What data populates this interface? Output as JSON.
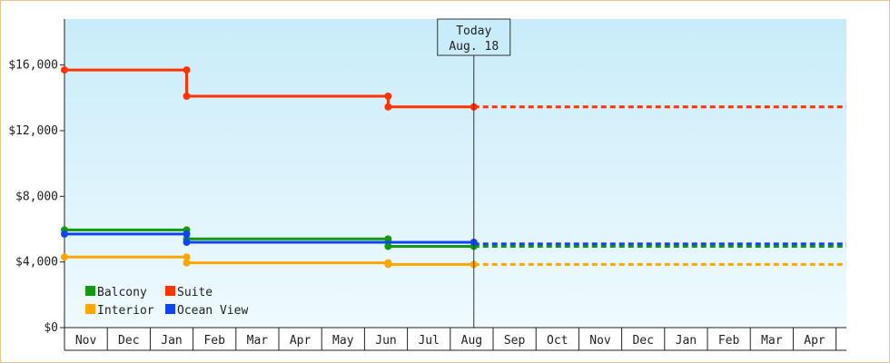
{
  "colors": {
    "background_top": "#c9ecfa",
    "background_bottom": "#effafe",
    "frame_border": "#e8c48e"
  },
  "chart_data": {
    "type": "line",
    "title": "",
    "xlabel": "",
    "ylabel": "",
    "ylim": [
      0,
      18800
    ],
    "x_tick_labels": [
      "Nov",
      "Dec",
      "Jan",
      "Feb",
      "Mar",
      "Apr",
      "May",
      "Jun",
      "Jul",
      "Aug",
      "Sep",
      "Oct",
      "Nov",
      "Dec",
      "Jan",
      "Feb",
      "Mar",
      "Apr"
    ],
    "y_ticks": [
      0,
      4000,
      8000,
      12000,
      16000
    ],
    "y_tick_labels": [
      "$0",
      "$4,000",
      "$8,000",
      "$12,000",
      "$16,000"
    ],
    "step": true,
    "today": {
      "line1": "Today",
      "line2": "Aug. 18",
      "x": 9.55
    },
    "legend": {
      "placement": "bottom-left",
      "columns": 2
    },
    "series": [
      {
        "name": "Balcony",
        "color": "#119911",
        "points": [
          [
            0,
            5950
          ],
          [
            2.85,
            5950
          ],
          [
            2.85,
            5400
          ],
          [
            7.55,
            5400
          ],
          [
            7.55,
            4950
          ],
          [
            9.55,
            4950
          ]
        ],
        "projection": 4950
      },
      {
        "name": "Suite",
        "color": "#ff3300",
        "points": [
          [
            0,
            15700
          ],
          [
            2.85,
            15700
          ],
          [
            2.85,
            14100
          ],
          [
            7.55,
            14100
          ],
          [
            7.55,
            13450
          ],
          [
            9.55,
            13450
          ]
        ],
        "projection": 13450
      },
      {
        "name": "Interior",
        "color": "#ffa500",
        "points": [
          [
            0,
            4300
          ],
          [
            2.85,
            4300
          ],
          [
            2.85,
            3950
          ],
          [
            7.55,
            3950
          ],
          [
            7.55,
            3850
          ],
          [
            9.55,
            3850
          ]
        ],
        "projection": 3850
      },
      {
        "name": "Ocean View",
        "color": "#1144ee",
        "points": [
          [
            0,
            5700
          ],
          [
            2.85,
            5700
          ],
          [
            2.85,
            5200
          ],
          [
            9.55,
            5200
          ]
        ],
        "projection": 5100
      }
    ]
  }
}
